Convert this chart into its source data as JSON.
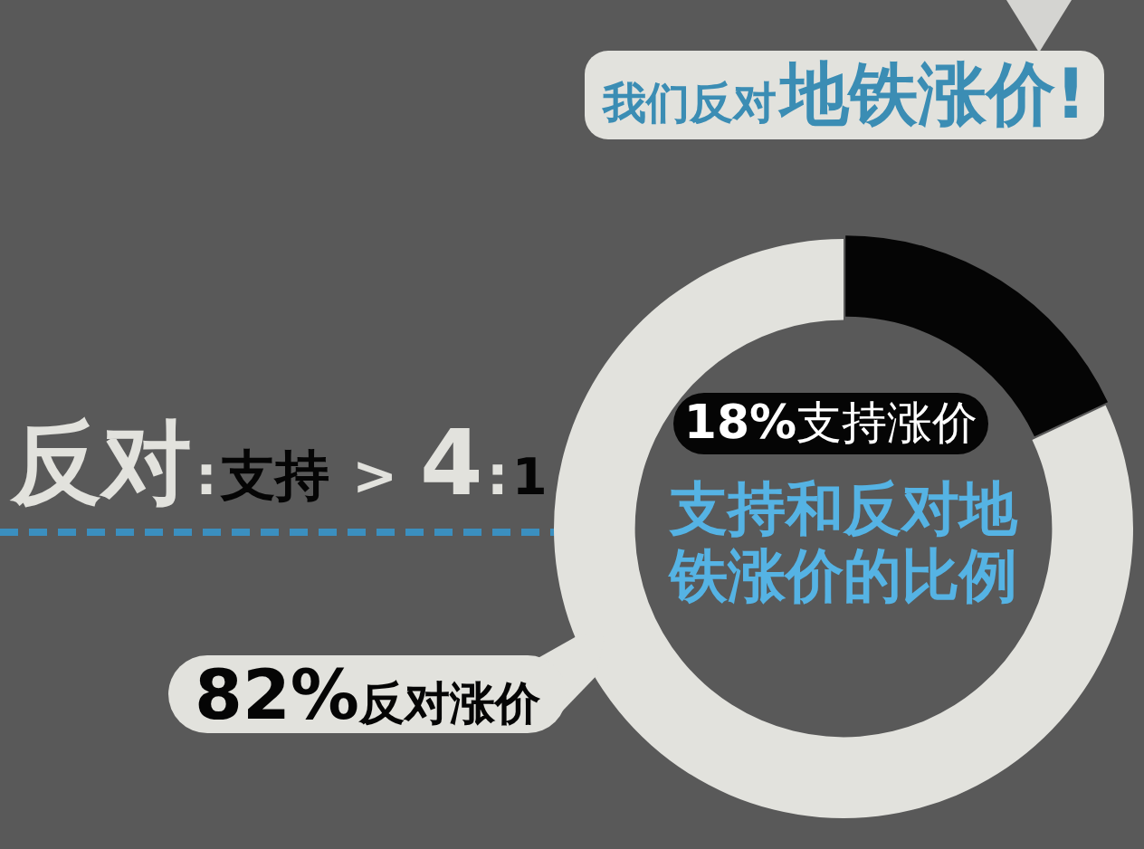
{
  "chart_data": {
    "type": "donut",
    "title": "支持和反对地铁涨价的比例",
    "categories": [
      "支持涨价",
      "反对涨价"
    ],
    "values": [
      18,
      82
    ],
    "colors": [
      "#050505",
      "#e2e2dd"
    ],
    "value_labels": [
      "18%",
      "82%"
    ],
    "annotations": [
      "我们反对地铁涨价!",
      "反对:支持 > 4:1"
    ],
    "legend": false
  }
}
